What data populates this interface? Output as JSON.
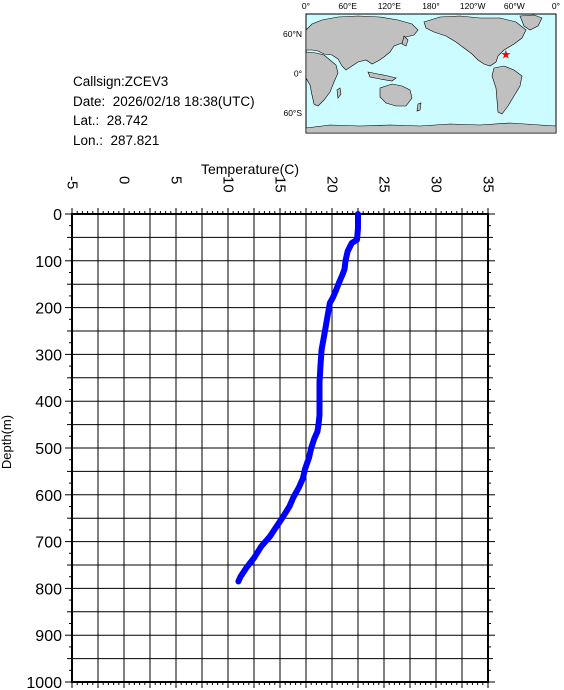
{
  "info": {
    "callsign": "Callsign:ZCEV3",
    "date": "Date:  2026/02/18 18:38(UTC)",
    "lat": "Lat.:  28.742",
    "lon": "Lon.:  287.821"
  },
  "map": {
    "lon_labels": [
      "0°",
      "60°E",
      "120°E",
      "180°",
      "120°W",
      "60°W",
      "0°"
    ],
    "lat_labels": [
      "60°N",
      "0°",
      "60°S"
    ],
    "ocean_color": "#ccfcff",
    "land_color": "#c0c0c0",
    "marker_color": "#ff0000",
    "marker_lat": 28.742,
    "marker_lon": 287.821
  },
  "chart_data": {
    "type": "line",
    "xlabel": "Temperature(C)",
    "ylabel": "Depth(m)",
    "xlim": [
      -5,
      35
    ],
    "ylim": [
      0,
      1000
    ],
    "y_inverted": true,
    "x_ticks": [
      "-5",
      "0",
      "5",
      "10",
      "15",
      "20",
      "25",
      "30",
      "35"
    ],
    "y_ticks": [
      "0",
      "100",
      "200",
      "300",
      "400",
      "500",
      "600",
      "700",
      "800",
      "900",
      "1000"
    ],
    "grid": true,
    "line_color": "#0000ff",
    "series": [
      {
        "x": [
          22.5,
          22.5,
          22.4,
          21.9,
          21.5,
          21.3,
          21.2,
          21.0,
          20.7,
          20.4,
          20.1,
          19.8,
          19.6,
          19.4,
          19.2,
          19.0,
          18.9,
          18.8,
          18.8,
          18.8,
          18.7,
          18.6,
          18.3,
          18.0,
          17.8,
          17.4,
          17.2,
          16.8,
          16.3,
          15.9,
          15.2,
          14.6,
          14.0,
          13.2,
          12.5,
          11.8,
          11.2,
          11.0
        ],
        "y": [
          0,
          30,
          55,
          62,
          80,
          100,
          118,
          130,
          145,
          162,
          178,
          190,
          215,
          240,
          265,
          290,
          320,
          360,
          400,
          430,
          450,
          465,
          480,
          500,
          520,
          545,
          565,
          585,
          605,
          625,
          650,
          670,
          690,
          710,
          735,
          755,
          775,
          785
        ]
      }
    ]
  }
}
